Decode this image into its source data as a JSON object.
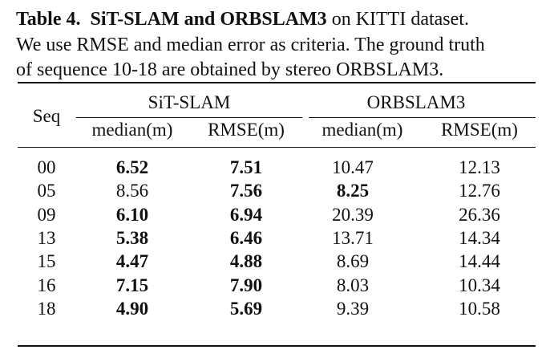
{
  "caption": {
    "label": "Table 4.",
    "bold_title": "SiT-SLAM and ORBSLAM3",
    "line1_rest": "on KITTI dataset.",
    "line2": "We use RMSE and median error as criteria. The ground truth",
    "line3": "of sequence 10-18 are obtained by stereo ORBSLAM3."
  },
  "table": {
    "seq_header": "Seq",
    "groups": [
      "SiT-SLAM",
      "ORBSLAM3"
    ],
    "subheaders": [
      "median(m)",
      "RMSE(m)",
      "median(m)",
      "RMSE(m)"
    ],
    "rows": [
      {
        "seq": "00",
        "cells": [
          {
            "v": "6.52",
            "b": true
          },
          {
            "v": "7.51",
            "b": true
          },
          {
            "v": "10.47",
            "b": false
          },
          {
            "v": "12.13",
            "b": false
          }
        ]
      },
      {
        "seq": "05",
        "cells": [
          {
            "v": "8.56",
            "b": false
          },
          {
            "v": "7.56",
            "b": true
          },
          {
            "v": "8.25",
            "b": true
          },
          {
            "v": "12.76",
            "b": false
          }
        ]
      },
      {
        "seq": "09",
        "cells": [
          {
            "v": "6.10",
            "b": true
          },
          {
            "v": "6.94",
            "b": true
          },
          {
            "v": "20.39",
            "b": false
          },
          {
            "v": "26.36",
            "b": false
          }
        ]
      },
      {
        "seq": "13",
        "cells": [
          {
            "v": "5.38",
            "b": true
          },
          {
            "v": "6.46",
            "b": true
          },
          {
            "v": "13.71",
            "b": false
          },
          {
            "v": "14.34",
            "b": false
          }
        ]
      },
      {
        "seq": "15",
        "cells": [
          {
            "v": "4.47",
            "b": true
          },
          {
            "v": "4.88",
            "b": true
          },
          {
            "v": "8.69",
            "b": false
          },
          {
            "v": "14.44",
            "b": false
          }
        ]
      },
      {
        "seq": "16",
        "cells": [
          {
            "v": "7.15",
            "b": true
          },
          {
            "v": "7.90",
            "b": true
          },
          {
            "v": "8.03",
            "b": false
          },
          {
            "v": "10.34",
            "b": false
          }
        ]
      },
      {
        "seq": "18",
        "cells": [
          {
            "v": "4.90",
            "b": true
          },
          {
            "v": "5.69",
            "b": true
          },
          {
            "v": "9.39",
            "b": false
          },
          {
            "v": "10.58",
            "b": false
          }
        ]
      }
    ]
  }
}
